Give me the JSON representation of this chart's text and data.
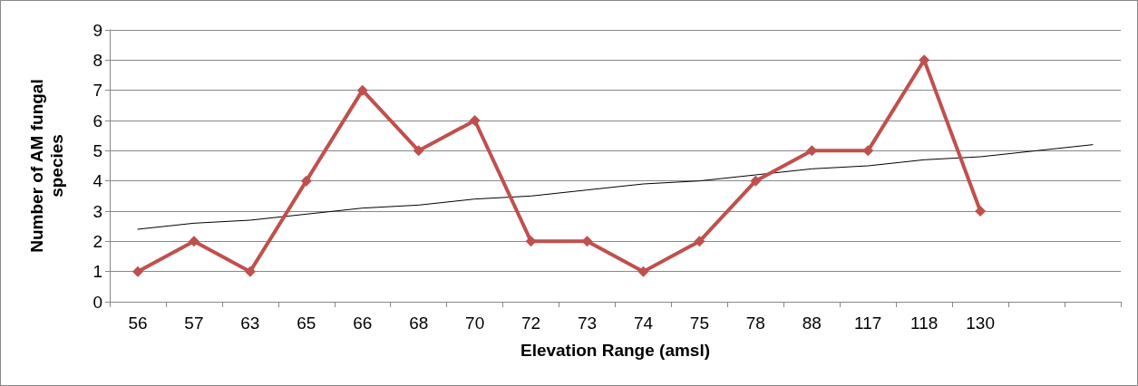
{
  "chart_data": {
    "type": "line",
    "xlabel": "Elevation Range (amsl)",
    "ylabel": "Number of AM fungal species",
    "categories": [
      "56",
      "57",
      "63",
      "65",
      "66",
      "68",
      "70",
      "72",
      "73",
      "74",
      "75",
      "78",
      "88",
      "117",
      "118",
      "130",
      null,
      null
    ],
    "series": [
      {
        "color": "#c0504d",
        "marker": "diamond",
        "values": [
          1,
          2,
          1,
          4,
          7,
          5,
          6,
          2,
          2,
          1,
          2,
          4,
          5,
          5,
          8,
          3,
          null,
          null
        ]
      },
      {
        "color": "#000000",
        "marker": "none",
        "values": [
          2.4,
          2.6,
          2.7,
          2.9,
          3.1,
          3.2,
          3.4,
          3.5,
          3.7,
          3.9,
          4.0,
          4.2,
          4.4,
          4.5,
          4.7,
          4.8,
          5.0,
          5.2
        ]
      }
    ],
    "ylim": [
      0,
      9
    ],
    "yticks": [
      0,
      1,
      2,
      3,
      4,
      5,
      6,
      7,
      8,
      9
    ],
    "grid": "y"
  }
}
